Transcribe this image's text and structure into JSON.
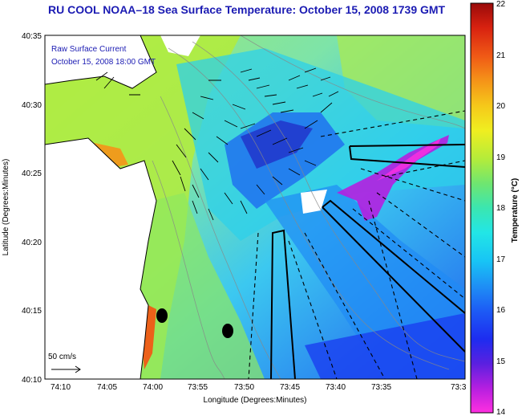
{
  "title": "RU COOL  NOAA–18  Sea Surface Temperature:  October 15, 2008 1739 GMT",
  "legend": {
    "line1": "Raw Surface Current",
    "line2": "October 15, 2008 18:00 GMT"
  },
  "axes": {
    "xlabel": "Longitude (Degrees:Minutes)",
    "ylabel": "Latitude (Degrees:Minutes)",
    "xticks": [
      "74:10",
      "74:05",
      "74:00",
      "73:55",
      "73:50",
      "73:45",
      "73:40",
      "73:35",
      "73:3"
    ],
    "yticks": [
      "40:35",
      "40:30",
      "40:25",
      "40:20",
      "40:15",
      "40:10"
    ]
  },
  "colorbar": {
    "title": "Temperature (°C)",
    "ticks": [
      "22",
      "21",
      "20",
      "19",
      "18",
      "17",
      "16",
      "15",
      "14"
    ],
    "min": 14,
    "max": 22
  },
  "scale_bar": {
    "label": "50 cm/s"
  },
  "colors": {
    "title": "#1b1bb3",
    "land": "#ffffff",
    "coast": "#000000"
  }
}
